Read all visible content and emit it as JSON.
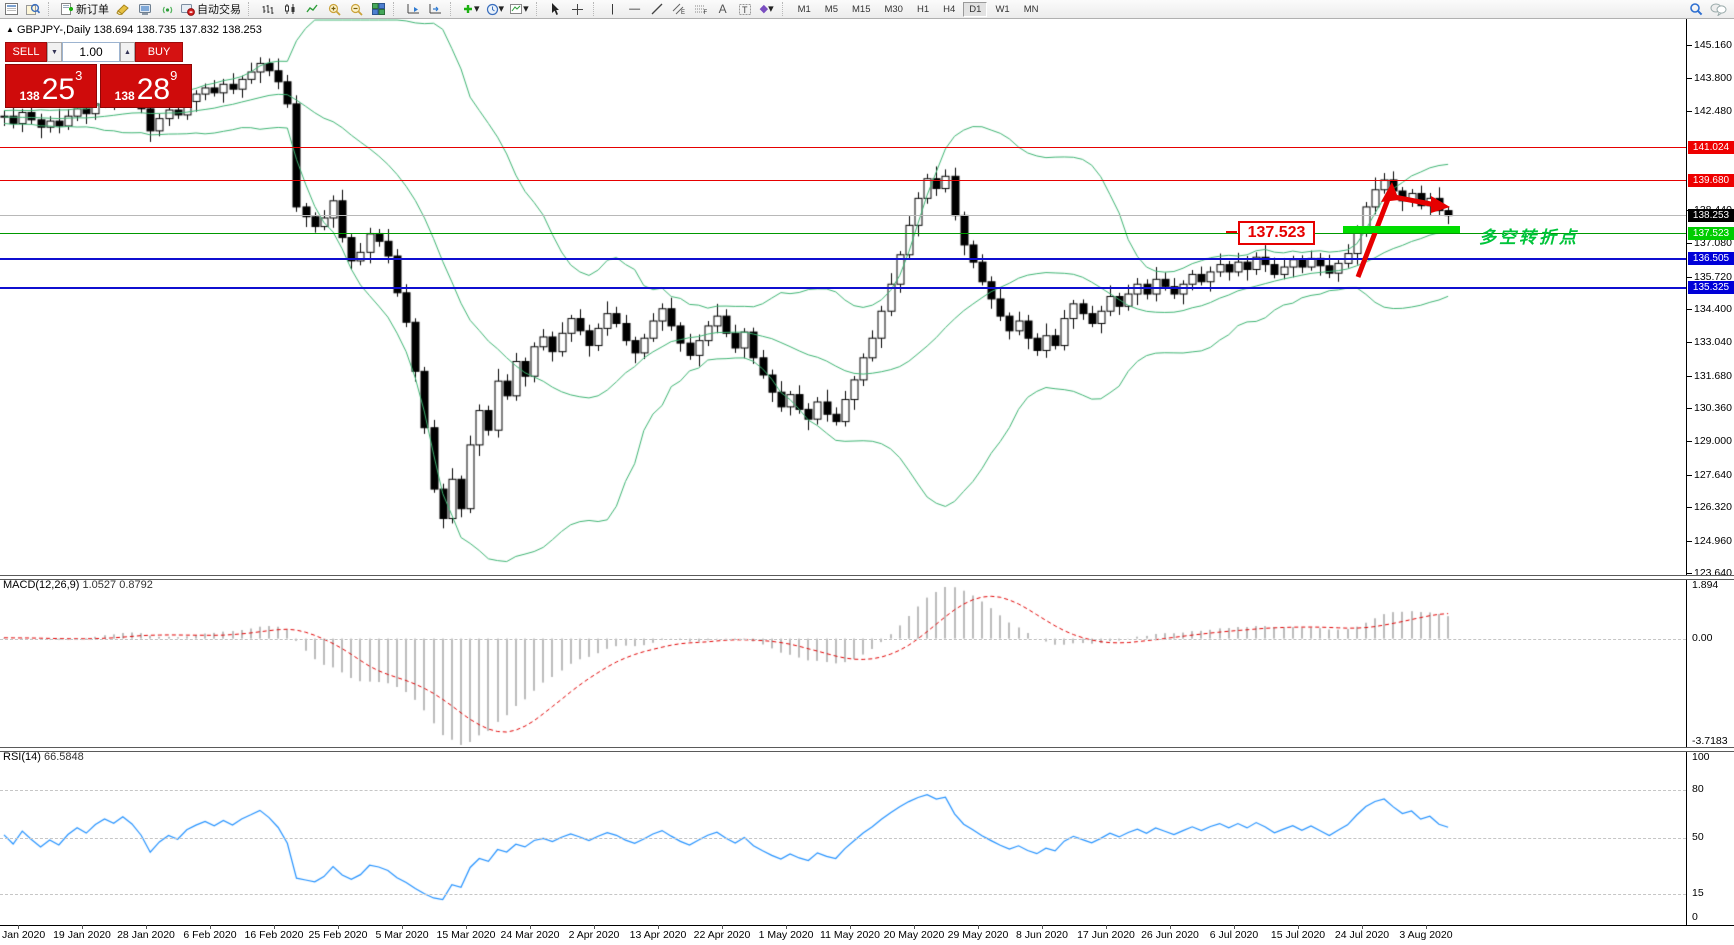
{
  "toolbar": {
    "new_order_label": "新订单",
    "autotrade_label": "自动交易",
    "timeframes": [
      "M1",
      "M5",
      "M15",
      "M30",
      "H1",
      "H4",
      "D1",
      "W1",
      "MN"
    ],
    "active_timeframe": "D1",
    "drawing_tools": {
      "vline": "|",
      "hline": "—",
      "trendline": "/",
      "channel_tag": "E",
      "fibo_tag": "F",
      "text_tool": "A",
      "label_tool": "T",
      "shapes_tool": "◆",
      "dropdown": "▾"
    }
  },
  "quote_bar": {
    "symbol_line": "GBPJPY-,Daily",
    "open": "138.694",
    "high": "138.735",
    "low": "137.832",
    "close": "138.253",
    "triangle": "▲"
  },
  "trade_panel": {
    "sell_label": "SELL",
    "buy_label": "BUY",
    "volume": "1.00",
    "spin_down": "▼",
    "spin_up": "▲",
    "sell_big": "138",
    "sell_main": "25",
    "sell_sup": "3",
    "buy_big": "138",
    "buy_main": "28",
    "buy_sup": "9"
  },
  "price_axis": {
    "ticks": [
      "145.160",
      "143.800",
      "142.480",
      "138.440",
      "137.080",
      "135.720",
      "134.400",
      "133.040",
      "131.680",
      "130.360",
      "129.000",
      "127.640",
      "126.320",
      "124.960",
      "123.640"
    ],
    "badges": [
      {
        "label": "141.024",
        "price": 141.024,
        "bg": "#ee0000",
        "fg": "#ffffff"
      },
      {
        "label": "139.680",
        "price": 139.68,
        "bg": "#ee0000",
        "fg": "#ffffff"
      },
      {
        "label": "138.253",
        "price": 138.253,
        "bg": "#000000",
        "fg": "#ffffff"
      },
      {
        "label": "137.523",
        "price": 137.523,
        "bg": "#00cc00",
        "fg": "#ffffff"
      },
      {
        "label": "136.505",
        "price": 136.505,
        "bg": "#0000d8",
        "fg": "#ffffff"
      },
      {
        "label": "135.325",
        "price": 135.325,
        "bg": "#0000d8",
        "fg": "#ffffff"
      }
    ]
  },
  "levels": [
    {
      "price": 141.024,
      "color": "#e60000",
      "thickness": 1
    },
    {
      "price": 139.68,
      "color": "#e60000",
      "thickness": 1
    },
    {
      "price": 138.253,
      "color": "#b8b8b8",
      "thickness": 1
    },
    {
      "price": 137.523,
      "color": "#009900",
      "thickness": 1
    },
    {
      "price": 136.505,
      "color": "#0f0fd0",
      "thickness": 2
    },
    {
      "price": 135.325,
      "color": "#0f0fd0",
      "thickness": 2
    }
  ],
  "macd_panel": {
    "label": "MACD(12,26,9)",
    "value_main": "1.0527",
    "value_signal": "0.8792",
    "axis": [
      "1.894",
      "0.00",
      "-3.7183"
    ]
  },
  "rsi_panel": {
    "label": "RSI(14)",
    "value": "66.5848",
    "axis": [
      "100",
      "80",
      "50",
      "15",
      "0"
    ],
    "level_lines": [
      80,
      50,
      15
    ]
  },
  "date_axis": [
    "Jan 2020",
    "19 Jan 2020",
    "28 Jan 2020",
    "6 Feb 2020",
    "16 Feb 2020",
    "25 Feb 2020",
    "5 Mar 2020",
    "15 Mar 2020",
    "24 Mar 2020",
    "2 Apr 2020",
    "13 Apr 2020",
    "22 Apr 2020",
    "1 May 2020",
    "11 May 2020",
    "20 May 2020",
    "29 May 2020",
    "8 Jun 2020",
    "17 Jun 2020",
    "26 Jun 2020",
    "6 Jul 2020",
    "15 Jul 2020",
    "24 Jul 2020",
    "3 Aug 2020"
  ],
  "annotations": {
    "level_label": "137.523",
    "turning_point_text": "多空转折点",
    "box_color": "#e60000",
    "bar_color": "#00dd00",
    "text_color": "#00c43a",
    "arrow_color": "#e60000"
  },
  "chart_data": {
    "type": "candlestick",
    "symbol": "GBPJPY-",
    "timeframe": "Daily",
    "current_bar": {
      "open": 138.694,
      "high": 138.735,
      "low": 137.832,
      "close": 138.253
    },
    "price_axis_range": [
      123.64,
      146.3
    ],
    "grid": "off",
    "bollinger": {
      "period": 20,
      "deviation": 2,
      "color": "#3cb371"
    },
    "macd": {
      "fast": 12,
      "slow": 26,
      "signal": 9,
      "range": [
        -3.7183,
        1.894
      ],
      "histogram_color": "#bcbcbc",
      "signal_color": "#e00000"
    },
    "rsi": {
      "period": 14,
      "range": [
        0,
        100
      ],
      "color": "#2492ff"
    },
    "horizontal_levels": [
      141.024,
      139.68,
      137.523,
      136.505,
      135.325
    ],
    "bid_price": 138.253,
    "first_open": 142.2,
    "warmup_closes": [
      142.1,
      142.3,
      142.0,
      142.2,
      142.4,
      142.1,
      141.9,
      142.2,
      142.5,
      142.3,
      142.1,
      142.4,
      142.2,
      142.0,
      142.3,
      142.5,
      142.2,
      142.4,
      142.1,
      142.3,
      142.2,
      142.4,
      142.3,
      142.1,
      142.2,
      142.3
    ],
    "closes": [
      142.3,
      142.0,
      142.45,
      142.15,
      141.85,
      142.1,
      141.9,
      142.3,
      142.6,
      142.4,
      142.8,
      143.1,
      142.95,
      143.3,
      143.05,
      142.6,
      141.7,
      142.2,
      142.55,
      142.35,
      142.9,
      143.2,
      143.45,
      143.25,
      143.6,
      143.4,
      143.8,
      144.1,
      144.45,
      144.15,
      143.7,
      142.8,
      138.6,
      138.2,
      137.8,
      138.15,
      138.85,
      137.35,
      136.4,
      136.75,
      137.5,
      137.2,
      136.6,
      135.1,
      133.9,
      131.9,
      129.6,
      127.1,
      125.9,
      127.5,
      126.3,
      128.9,
      130.3,
      129.5,
      131.5,
      130.9,
      132.3,
      131.7,
      132.9,
      133.3,
      132.7,
      133.45,
      134.05,
      133.55,
      132.95,
      133.65,
      134.25,
      133.85,
      133.15,
      132.65,
      133.25,
      133.95,
      134.45,
      133.75,
      133.05,
      132.55,
      133.15,
      133.75,
      134.15,
      133.45,
      132.85,
      133.5,
      132.45,
      131.75,
      131.05,
      130.45,
      130.95,
      130.35,
      129.95,
      130.65,
      130.15,
      129.85,
      130.75,
      131.55,
      132.45,
      133.25,
      134.35,
      135.45,
      136.65,
      137.85,
      138.95,
      139.75,
      139.35,
      139.85,
      138.25,
      137.05,
      136.35,
      135.55,
      134.85,
      134.15,
      133.55,
      133.95,
      133.25,
      132.75,
      133.35,
      132.95,
      134.05,
      134.65,
      134.25,
      133.85,
      134.35,
      134.95,
      134.55,
      135.05,
      135.45,
      135.05,
      135.65,
      135.35,
      135.05,
      135.45,
      135.85,
      135.55,
      135.95,
      136.25,
      135.95,
      136.35,
      136.05,
      136.55,
      136.25,
      135.85,
      136.15,
      136.45,
      136.15,
      136.5,
      136.2,
      135.9,
      136.3,
      136.7,
      137.6,
      138.6,
      139.3,
      139.7,
      139.25,
      138.85,
      139.15,
      138.65,
      138.95,
      138.45,
      138.25
    ],
    "wick_up_cycle": [
      0.18,
      0.32,
      0.22,
      0.45,
      0.15,
      0.38,
      0.25,
      0.2,
      0.5,
      0.28,
      0.35,
      0.16
    ],
    "wick_down_cycle": [
      0.25,
      0.15,
      0.4,
      0.2,
      0.35,
      0.18,
      0.45,
      0.22,
      0.3,
      0.16,
      0.2,
      0.42
    ]
  }
}
